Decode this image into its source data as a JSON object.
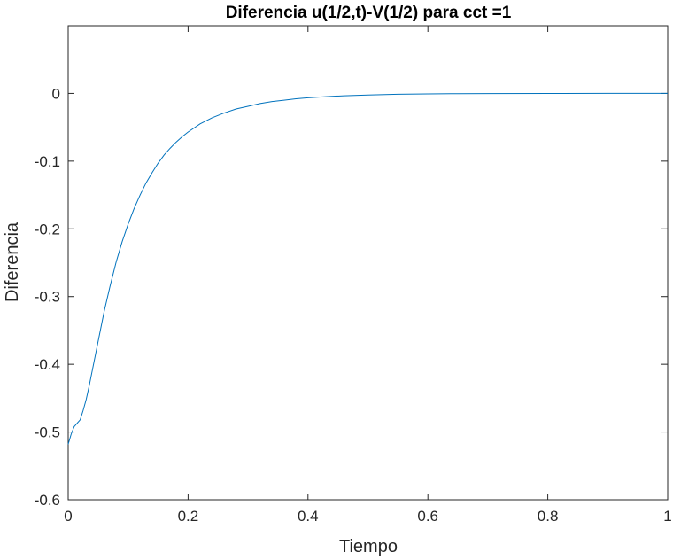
{
  "chart_data": {
    "type": "line",
    "title": "Diferencia u(1/2,t)-V(1/2) para cct =1",
    "xlabel": "Tiempo",
    "ylabel": "Diferencia",
    "xlim": [
      0,
      1
    ],
    "ylim": [
      -0.6,
      0.1
    ],
    "xticks": [
      0,
      0.2,
      0.4,
      0.6,
      0.8,
      1
    ],
    "xtick_labels": [
      "0",
      "0.2",
      "0.4",
      "0.6",
      "0.8",
      "1"
    ],
    "yticks": [
      -0.6,
      -0.5,
      -0.4,
      -0.3,
      -0.2,
      -0.1,
      0
    ],
    "ytick_labels": [
      "-0.6",
      "-0.5",
      "-0.4",
      "-0.3",
      "-0.2",
      "-0.1",
      "0"
    ],
    "grid": false,
    "line_color": "#0072BD",
    "series": [
      {
        "x": [
          0,
          0.005,
          0.01,
          0.015,
          0.02,
          0.025,
          0.03,
          0.035,
          0.04,
          0.05,
          0.06,
          0.07,
          0.08,
          0.09,
          0.1,
          0.11,
          0.12,
          0.13,
          0.14,
          0.15,
          0.16,
          0.17,
          0.18,
          0.19,
          0.2,
          0.22,
          0.24,
          0.26,
          0.28,
          0.3,
          0.32,
          0.34,
          0.36,
          0.38,
          0.4,
          0.43,
          0.46,
          0.5,
          0.55,
          0.6,
          0.65,
          0.7,
          0.8,
          0.9,
          1.0
        ],
        "y": [
          -0.518,
          -0.503,
          -0.492,
          -0.487,
          -0.482,
          -0.468,
          -0.452,
          -0.432,
          -0.41,
          -0.366,
          -0.322,
          -0.284,
          -0.249,
          -0.219,
          -0.193,
          -0.17,
          -0.15,
          -0.132,
          -0.117,
          -0.103,
          -0.091,
          -0.081,
          -0.072,
          -0.064,
          -0.057,
          -0.045,
          -0.036,
          -0.029,
          -0.023,
          -0.019,
          -0.015,
          -0.012,
          -0.01,
          -0.008,
          -0.0065,
          -0.0048,
          -0.0035,
          -0.0023,
          -0.0013,
          -0.0007,
          -0.0004,
          -0.0002,
          -0.0001,
          0.0,
          0.0
        ]
      }
    ]
  }
}
